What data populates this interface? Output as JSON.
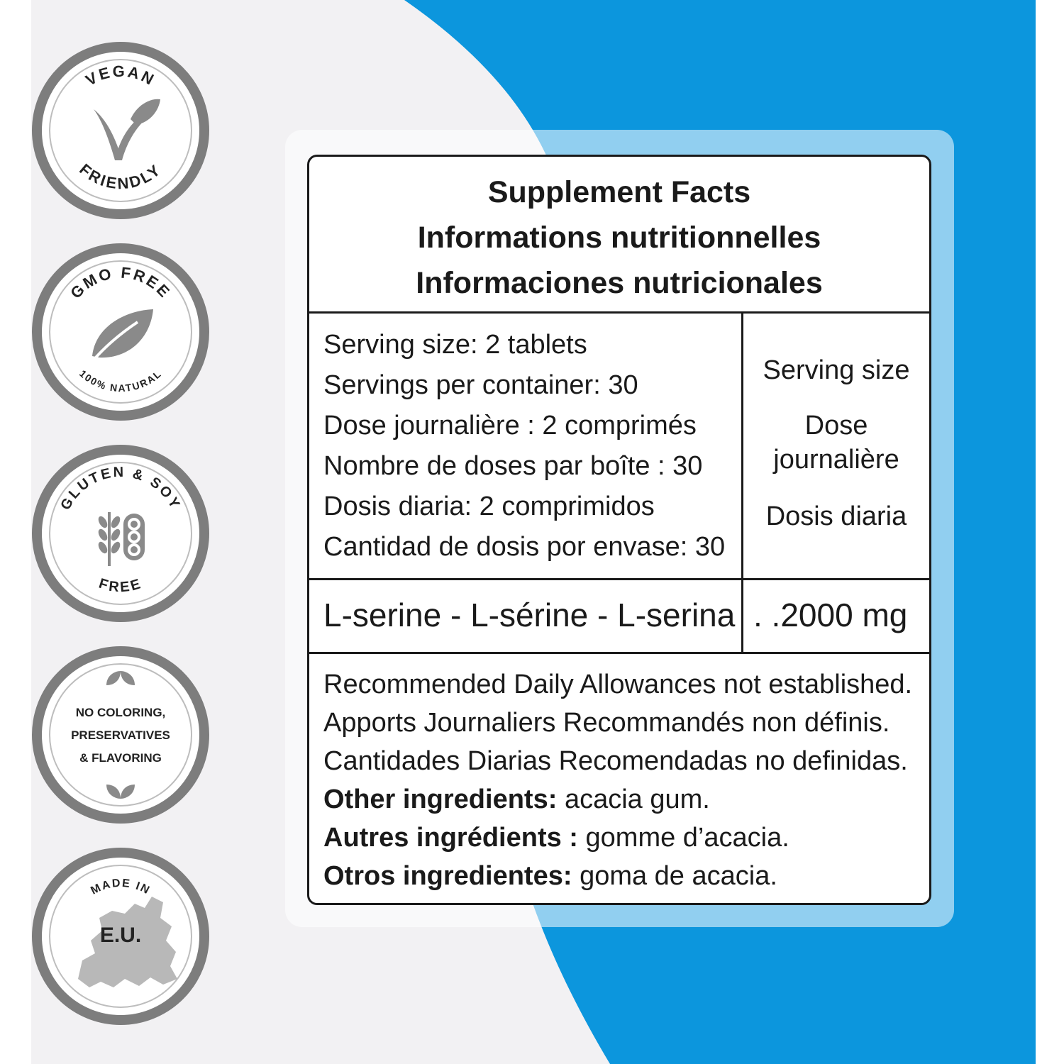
{
  "colors": {
    "panel_gray": "#f2f1f3",
    "accent_blue": "#0c96dd",
    "badge_ring": "#7d7d7d",
    "badge_icon": "#8a8a8a",
    "text": "#1a1a1a"
  },
  "badges": [
    {
      "icon": "vegan-sprout-icon",
      "top_text": "VEGAN",
      "bottom_text": "FRIENDLY"
    },
    {
      "icon": "leaf-icon",
      "top_text": "GMO FREE",
      "bottom_text": "100% NATURAL"
    },
    {
      "icon": "wheat-soy-icon",
      "top_text": "GLUTEN & SOY",
      "bottom_text": "FREE"
    },
    {
      "icon": "leaves-icon",
      "lines": [
        "NO COLORING,",
        "PRESERVATIVES",
        "& FLAVORING"
      ]
    },
    {
      "icon": "europe-map-icon",
      "top_text": "MADE IN",
      "center_text": "E.U."
    }
  ],
  "label": {
    "titles": [
      "Supplement Facts",
      "Informations nutritionnelles",
      "Informaciones nutricionales"
    ],
    "serving_lines": [
      "Serving size: 2 tablets",
      "Servings per container: 30",
      "Dose journalière : 2 comprimés",
      "Nombre de doses par boîte : 30",
      "Dosis diaria: 2 comprimidos",
      "Cantidad de dosis por envase: 30"
    ],
    "serving_headers": [
      "Serving size",
      "Dose",
      "journalière",
      "Dosis diaria"
    ],
    "ingredient": {
      "name": "L-serine - L-sérine - L-serina",
      "leader": ". .",
      "amount": "2000 mg"
    },
    "notes": [
      "Recommended Daily Allowances not established.",
      "Apports Journaliers Recommandés non définis.",
      "Cantidades Diarias Recomendadas no definidas."
    ],
    "other_ingredients": [
      {
        "label": "Other ingredients:",
        "value": "acacia gum."
      },
      {
        "label": "Autres ingrédients :",
        "value": "gomme d’acacia."
      },
      {
        "label": "Otros ingredientes:",
        "value": "goma de acacia."
      }
    ]
  }
}
